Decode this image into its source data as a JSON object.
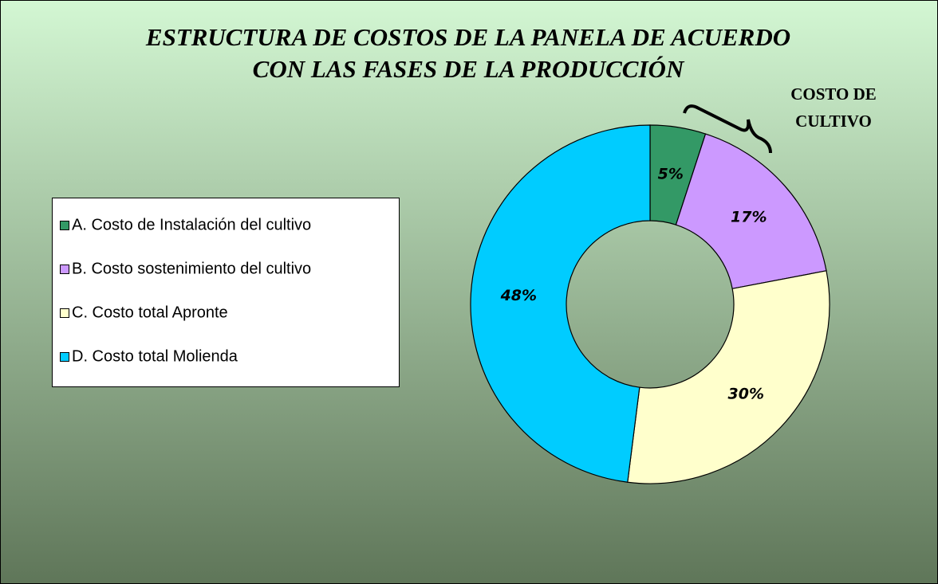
{
  "chart_data": {
    "type": "donut",
    "title": [
      "ESTRUCTURA DE COSTOS DE LA PANELA DE ACUERDO",
      "CON LAS FASES DE LA PRODUCCIÓN"
    ],
    "annotation": [
      "COSTO DE",
      "CULTIVO"
    ],
    "categories": [
      "A. Costo de Instalación del cultivo",
      "B. Costo sostenimiento del cultivo",
      "C. Costo total Apronte",
      "D. Costo total Molienda"
    ],
    "values": [
      5,
      17,
      30,
      48
    ],
    "value_labels": [
      "5%",
      "17%",
      "30%",
      "48%"
    ],
    "colors": [
      "#339966",
      "#cc99ff",
      "#ffffcc",
      "#00ccff"
    ],
    "legend": "left"
  }
}
